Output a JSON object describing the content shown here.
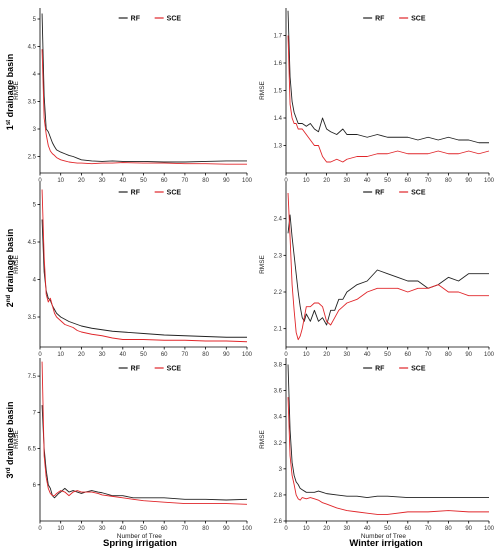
{
  "figure": {
    "column_labels": [
      "Spring irrigation",
      "Winter irrigation"
    ],
    "row_labels": [
      {
        "pre": "1",
        "sup": "st",
        "post": " drainage basin"
      },
      {
        "pre": "2",
        "sup": "nd",
        "post": " drainage basin"
      },
      {
        "pre": "3",
        "sup": "rd",
        "post": " drainage basin"
      }
    ],
    "colors": {
      "RF": "#222222",
      "SCE": "#e0262a"
    }
  },
  "chart_data": [
    {
      "type": "line",
      "panel": "basin1-spring",
      "ylabel": "RMSE",
      "xlabel": "",
      "xlim": [
        0,
        100
      ],
      "ylim": [
        2.2,
        5.2
      ],
      "xticks": [
        0,
        10,
        20,
        30,
        40,
        50,
        60,
        70,
        80,
        90,
        100
      ],
      "yticks": [
        2.5,
        3,
        3.5,
        4,
        4.5,
        5
      ],
      "series": [
        {
          "name": "RF",
          "x": [
            1,
            2,
            3,
            4,
            5,
            6,
            7,
            8,
            10,
            12,
            14,
            16,
            18,
            20,
            25,
            30,
            35,
            40,
            50,
            60,
            70,
            80,
            90,
            100
          ],
          "y": [
            5.1,
            3.6,
            3.0,
            2.95,
            2.85,
            2.75,
            2.68,
            2.62,
            2.58,
            2.55,
            2.52,
            2.5,
            2.47,
            2.44,
            2.42,
            2.41,
            2.42,
            2.41,
            2.41,
            2.4,
            2.4,
            2.41,
            2.42,
            2.42
          ]
        },
        {
          "name": "SCE",
          "x": [
            1,
            2,
            3,
            4,
            5,
            6,
            7,
            8,
            10,
            12,
            14,
            16,
            18,
            20,
            25,
            30,
            35,
            40,
            50,
            60,
            70,
            80,
            90,
            100
          ],
          "y": [
            4.45,
            3.2,
            2.9,
            2.7,
            2.6,
            2.55,
            2.52,
            2.48,
            2.44,
            2.42,
            2.4,
            2.39,
            2.38,
            2.38,
            2.37,
            2.38,
            2.38,
            2.39,
            2.38,
            2.38,
            2.37,
            2.37,
            2.36,
            2.36
          ]
        }
      ]
    },
    {
      "type": "line",
      "panel": "basin1-winter",
      "ylabel": "RMSE",
      "xlabel": "",
      "xlim": [
        0,
        100
      ],
      "ylim": [
        1.2,
        1.8
      ],
      "xticks": [
        0,
        10,
        20,
        30,
        40,
        50,
        60,
        70,
        80,
        90,
        100
      ],
      "yticks": [
        1.3,
        1.4,
        1.5,
        1.6,
        1.7
      ],
      "series": [
        {
          "name": "RF",
          "x": [
            1,
            2,
            3,
            4,
            5,
            6,
            8,
            10,
            12,
            14,
            16,
            18,
            20,
            22,
            25,
            28,
            30,
            35,
            40,
            45,
            50,
            55,
            60,
            65,
            70,
            75,
            80,
            85,
            90,
            95,
            100
          ],
          "y": [
            1.79,
            1.55,
            1.46,
            1.42,
            1.4,
            1.38,
            1.38,
            1.37,
            1.38,
            1.36,
            1.35,
            1.4,
            1.36,
            1.35,
            1.34,
            1.36,
            1.34,
            1.34,
            1.33,
            1.34,
            1.33,
            1.33,
            1.33,
            1.32,
            1.33,
            1.32,
            1.33,
            1.32,
            1.32,
            1.31,
            1.31
          ]
        },
        {
          "name": "SCE",
          "x": [
            1,
            2,
            3,
            4,
            5,
            6,
            8,
            10,
            12,
            14,
            16,
            18,
            20,
            22,
            25,
            28,
            30,
            35,
            40,
            45,
            50,
            55,
            60,
            65,
            70,
            75,
            80,
            85,
            90,
            95,
            100
          ],
          "y": [
            1.7,
            1.45,
            1.4,
            1.38,
            1.38,
            1.36,
            1.36,
            1.34,
            1.32,
            1.3,
            1.3,
            1.26,
            1.24,
            1.24,
            1.25,
            1.24,
            1.25,
            1.26,
            1.26,
            1.27,
            1.27,
            1.28,
            1.27,
            1.27,
            1.27,
            1.28,
            1.27,
            1.27,
            1.28,
            1.27,
            1.28
          ]
        }
      ]
    },
    {
      "type": "line",
      "panel": "basin2-spring",
      "ylabel": "RMSE",
      "xlabel": "",
      "xlim": [
        0,
        100
      ],
      "ylim": [
        3.1,
        5.3
      ],
      "xticks": [
        0,
        10,
        20,
        30,
        40,
        50,
        60,
        70,
        80,
        90,
        100
      ],
      "yticks": [
        3.5,
        4,
        4.5,
        5
      ],
      "series": [
        {
          "name": "RF",
          "x": [
            1,
            2,
            3,
            4,
            5,
            6,
            7,
            8,
            10,
            12,
            14,
            16,
            18,
            20,
            25,
            30,
            35,
            40,
            50,
            60,
            70,
            80,
            90,
            100
          ],
          "y": [
            4.8,
            4.1,
            3.85,
            3.75,
            3.72,
            3.65,
            3.6,
            3.55,
            3.5,
            3.47,
            3.44,
            3.42,
            3.4,
            3.38,
            3.35,
            3.33,
            3.31,
            3.3,
            3.28,
            3.26,
            3.25,
            3.24,
            3.23,
            3.23
          ]
        },
        {
          "name": "SCE",
          "x": [
            1,
            2,
            3,
            4,
            5,
            6,
            7,
            8,
            10,
            12,
            14,
            16,
            18,
            20,
            25,
            30,
            35,
            40,
            50,
            60,
            70,
            80,
            90,
            100
          ],
          "y": [
            5.2,
            4.3,
            3.8,
            3.7,
            3.75,
            3.65,
            3.55,
            3.5,
            3.45,
            3.4,
            3.38,
            3.36,
            3.32,
            3.3,
            3.27,
            3.25,
            3.22,
            3.2,
            3.2,
            3.19,
            3.19,
            3.18,
            3.18,
            3.17
          ]
        }
      ]
    },
    {
      "type": "line",
      "panel": "basin2-winter",
      "ylabel": "RMSE",
      "xlabel": "",
      "xlim": [
        0,
        100
      ],
      "ylim": [
        2.05,
        2.5
      ],
      "xticks": [
        0,
        10,
        20,
        30,
        40,
        50,
        60,
        70,
        80,
        90,
        100
      ],
      "yticks": [
        2.1,
        2.2,
        2.3,
        2.4
      ],
      "series": [
        {
          "name": "RF",
          "x": [
            1,
            2,
            3,
            4,
            5,
            6,
            7,
            8,
            9,
            10,
            12,
            14,
            16,
            18,
            20,
            22,
            24,
            26,
            28,
            30,
            35,
            40,
            45,
            50,
            55,
            60,
            65,
            70,
            75,
            80,
            85,
            90,
            95,
            100
          ],
          "y": [
            2.36,
            2.41,
            2.35,
            2.3,
            2.25,
            2.2,
            2.16,
            2.13,
            2.12,
            2.14,
            2.12,
            2.15,
            2.12,
            2.13,
            2.11,
            2.15,
            2.15,
            2.18,
            2.18,
            2.2,
            2.22,
            2.23,
            2.26,
            2.25,
            2.24,
            2.23,
            2.23,
            2.21,
            2.22,
            2.24,
            2.23,
            2.25,
            2.25,
            2.25
          ]
        },
        {
          "name": "SCE",
          "x": [
            1,
            2,
            3,
            4,
            5,
            6,
            7,
            8,
            9,
            10,
            12,
            14,
            16,
            18,
            20,
            22,
            24,
            26,
            28,
            30,
            35,
            40,
            45,
            50,
            55,
            60,
            65,
            70,
            75,
            80,
            85,
            90,
            95,
            100
          ],
          "y": [
            2.47,
            2.35,
            2.22,
            2.15,
            2.09,
            2.07,
            2.08,
            2.1,
            2.13,
            2.16,
            2.16,
            2.17,
            2.17,
            2.16,
            2.12,
            2.11,
            2.13,
            2.15,
            2.16,
            2.17,
            2.18,
            2.2,
            2.21,
            2.21,
            2.21,
            2.2,
            2.21,
            2.21,
            2.22,
            2.2,
            2.2,
            2.19,
            2.19,
            2.19
          ]
        }
      ]
    },
    {
      "type": "line",
      "panel": "basin3-spring",
      "ylabel": "RMSE",
      "xlabel": "Number of Tree",
      "xlim": [
        0,
        100
      ],
      "ylim": [
        5.5,
        7.75
      ],
      "xticks": [
        0,
        10,
        20,
        30,
        40,
        50,
        60,
        70,
        80,
        90,
        100
      ],
      "yticks": [
        6,
        6.5,
        7,
        7.5
      ],
      "series": [
        {
          "name": "RF",
          "x": [
            1,
            2,
            3,
            4,
            5,
            6,
            7,
            8,
            9,
            10,
            12,
            14,
            16,
            18,
            20,
            22,
            25,
            28,
            30,
            35,
            40,
            45,
            50,
            60,
            70,
            80,
            90,
            100
          ],
          "y": [
            7.1,
            6.5,
            6.2,
            6.0,
            5.95,
            5.85,
            5.82,
            5.85,
            5.88,
            5.9,
            5.95,
            5.9,
            5.92,
            5.9,
            5.88,
            5.9,
            5.92,
            5.9,
            5.89,
            5.85,
            5.85,
            5.82,
            5.82,
            5.82,
            5.8,
            5.8,
            5.79,
            5.8
          ]
        },
        {
          "name": "SCE",
          "x": [
            1,
            2,
            3,
            4,
            5,
            6,
            7,
            8,
            9,
            10,
            12,
            14,
            16,
            18,
            20,
            22,
            25,
            28,
            30,
            35,
            40,
            45,
            50,
            60,
            70,
            80,
            90,
            100
          ],
          "y": [
            7.7,
            6.4,
            6.1,
            5.95,
            5.88,
            5.85,
            5.85,
            5.88,
            5.9,
            5.92,
            5.9,
            5.85,
            5.9,
            5.92,
            5.9,
            5.9,
            5.9,
            5.88,
            5.86,
            5.84,
            5.82,
            5.8,
            5.78,
            5.76,
            5.74,
            5.74,
            5.74,
            5.73
          ]
        }
      ]
    },
    {
      "type": "line",
      "panel": "basin3-winter",
      "ylabel": "RMSE",
      "xlabel": "Number of Tree",
      "xlim": [
        0,
        100
      ],
      "ylim": [
        2.6,
        3.85
      ],
      "xticks": [
        0,
        10,
        20,
        30,
        40,
        50,
        60,
        70,
        80,
        90,
        100
      ],
      "yticks": [
        2.6,
        2.8,
        3,
        3.2,
        3.4,
        3.6,
        3.8
      ],
      "series": [
        {
          "name": "RF",
          "x": [
            1,
            2,
            3,
            4,
            5,
            6,
            7,
            8,
            10,
            12,
            14,
            16,
            18,
            20,
            25,
            30,
            35,
            40,
            45,
            50,
            60,
            70,
            80,
            90,
            100
          ],
          "y": [
            3.8,
            3.3,
            3.05,
            2.95,
            2.9,
            2.88,
            2.85,
            2.84,
            2.82,
            2.82,
            2.82,
            2.83,
            2.82,
            2.81,
            2.8,
            2.79,
            2.79,
            2.78,
            2.79,
            2.79,
            2.78,
            2.78,
            2.78,
            2.78,
            2.78
          ]
        },
        {
          "name": "SCE",
          "x": [
            1,
            2,
            3,
            4,
            5,
            6,
            7,
            8,
            10,
            12,
            14,
            16,
            18,
            20,
            25,
            30,
            35,
            40,
            45,
            50,
            60,
            70,
            80,
            90,
            100
          ],
          "y": [
            3.55,
            3.1,
            2.95,
            2.88,
            2.8,
            2.77,
            2.76,
            2.78,
            2.77,
            2.78,
            2.77,
            2.76,
            2.74,
            2.73,
            2.7,
            2.68,
            2.67,
            2.66,
            2.65,
            2.65,
            2.67,
            2.67,
            2.68,
            2.67,
            2.67
          ]
        }
      ]
    }
  ]
}
